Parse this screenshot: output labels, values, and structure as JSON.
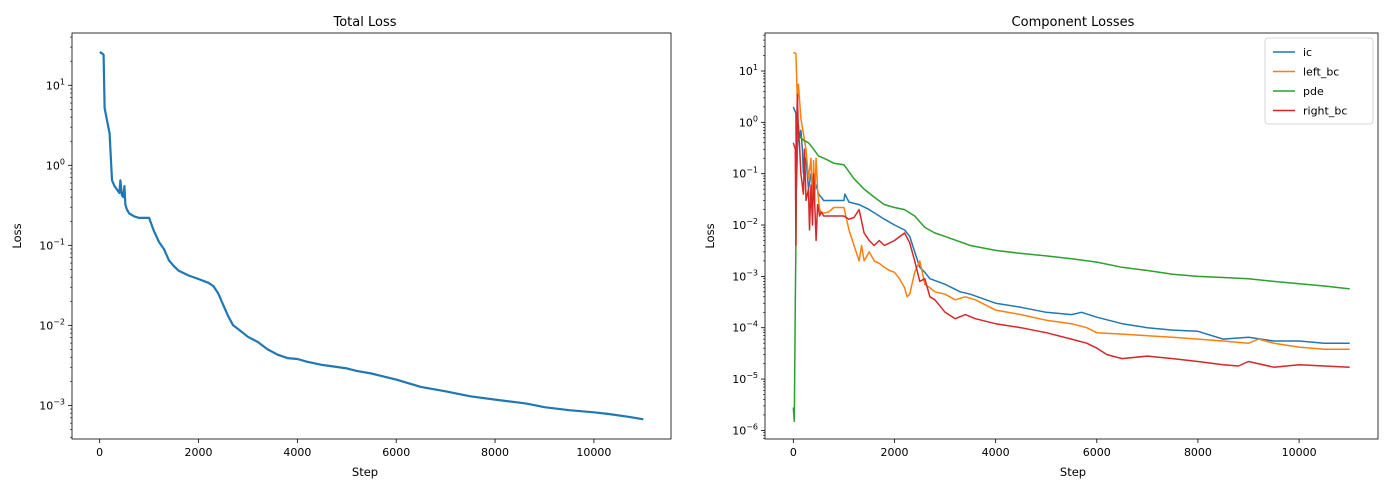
{
  "chart_data": [
    {
      "type": "line",
      "title": "Total Loss",
      "xlabel": "Step",
      "ylabel": "Loss",
      "yscale": "log",
      "xlim": [
        -560,
        11560
      ],
      "ylim": [
        0.00038,
        45
      ],
      "xticks": [
        0,
        2000,
        4000,
        6000,
        8000,
        10000
      ],
      "yticks": [
        {
          "value": 10,
          "exp": "1"
        },
        {
          "value": 1,
          "exp": "0"
        },
        {
          "value": 0.1,
          "exp": "−1"
        },
        {
          "value": 0.01,
          "exp": "−2"
        },
        {
          "value": 0.001,
          "exp": "−3"
        }
      ],
      "grid": false,
      "series": [
        {
          "color": "#1f77b4",
          "x": [
            0,
            50,
            80,
            100,
            200,
            250,
            300,
            400,
            420,
            450,
            480,
            500,
            520,
            550,
            600,
            700,
            800,
            1000,
            1100,
            1200,
            1300,
            1400,
            1500,
            1600,
            1800,
            2000,
            2200,
            2300,
            2400,
            2500,
            2600,
            2700,
            2800,
            3000,
            3200,
            3400,
            3600,
            3800,
            4000,
            4200,
            4500,
            5000,
            5200,
            5500,
            6000,
            6500,
            7000,
            7500,
            8000,
            8500,
            8650,
            9000,
            9500,
            10000,
            10300,
            10700,
            11000
          ],
          "y": [
            26,
            25,
            24,
            5.2,
            2.5,
            0.65,
            0.55,
            0.45,
            0.65,
            0.42,
            0.4,
            0.55,
            0.32,
            0.28,
            0.25,
            0.23,
            0.22,
            0.22,
            0.15,
            0.11,
            0.09,
            0.065,
            0.055,
            0.048,
            0.042,
            0.038,
            0.034,
            0.031,
            0.025,
            0.018,
            0.013,
            0.01,
            0.009,
            0.0072,
            0.0062,
            0.005,
            0.0043,
            0.0039,
            0.0038,
            0.0035,
            0.0032,
            0.0029,
            0.0027,
            0.0025,
            0.0021,
            0.0017,
            0.0015,
            0.0013,
            0.00118,
            0.00108,
            0.00105,
            0.00095,
            0.00087,
            0.00082,
            0.00078,
            0.00072,
            0.00067
          ]
        }
      ]
    },
    {
      "type": "line",
      "title": "Component Losses",
      "xlabel": "Step",
      "ylabel": "Loss",
      "yscale": "log",
      "xlim": [
        -560,
        11560
      ],
      "ylim": [
        6.8e-07,
        55
      ],
      "xticks": [
        0,
        2000,
        4000,
        6000,
        8000,
        10000
      ],
      "yticks": [
        {
          "value": 10,
          "exp": "1"
        },
        {
          "value": 1,
          "exp": "0"
        },
        {
          "value": 0.1,
          "exp": "−1"
        },
        {
          "value": 0.01,
          "exp": "−2"
        },
        {
          "value": 0.001,
          "exp": "−3"
        },
        {
          "value": 0.0001,
          "exp": "−4"
        },
        {
          "value": 1e-05,
          "exp": "−5"
        },
        {
          "value": 1e-06,
          "exp": "−6"
        }
      ],
      "grid": false,
      "legend": "upper-right",
      "series": [
        {
          "name": "ic",
          "color": "#1f77b4",
          "x": [
            0,
            50,
            60,
            80,
            100,
            120,
            150,
            180,
            200,
            250,
            300,
            350,
            400,
            450,
            500,
            550,
            600,
            800,
            1000,
            1020,
            1100,
            1300,
            1500,
            1800,
            2000,
            2200,
            2300,
            2400,
            2500,
            2600,
            2700,
            3000,
            3300,
            3500,
            4000,
            4500,
            5000,
            5500,
            5700,
            6000,
            6500,
            7000,
            7500,
            8000,
            8500,
            9000,
            9500,
            10000,
            10500,
            11000
          ],
          "y": [
            2.0,
            1.5,
            0.05,
            0.3,
            0.9,
            0.5,
            0.7,
            0.3,
            0.1,
            0.2,
            0.05,
            0.1,
            0.04,
            0.06,
            0.04,
            0.035,
            0.03,
            0.03,
            0.03,
            0.04,
            0.028,
            0.025,
            0.02,
            0.013,
            0.01,
            0.008,
            0.006,
            0.003,
            0.0015,
            0.0012,
            0.0009,
            0.0007,
            0.0005,
            0.00045,
            0.0003,
            0.00025,
            0.0002,
            0.00018,
            0.0002,
            0.00016,
            0.00012,
            0.0001,
            9e-05,
            8.5e-05,
            6e-05,
            6.5e-05,
            5.5e-05,
            5.5e-05,
            5e-05,
            5e-05
          ]
        },
        {
          "name": "left_bc",
          "color": "#ff7f0e",
          "x": [
            0,
            50,
            80,
            100,
            120,
            150,
            200,
            250,
            300,
            350,
            380,
            400,
            420,
            450,
            480,
            500,
            520,
            550,
            600,
            700,
            800,
            900,
            1000,
            1100,
            1200,
            1300,
            1350,
            1400,
            1500,
            1600,
            1700,
            1800,
            1900,
            2000,
            2100,
            2200,
            2250,
            2300,
            2400,
            2500,
            2600,
            2700,
            2800,
            3000,
            3200,
            3400,
            3600,
            4000,
            4500,
            5000,
            5500,
            5800,
            6000,
            6500,
            7000,
            7500,
            8000,
            8500,
            9000,
            9200,
            9500,
            10000,
            10500,
            11000
          ],
          "y": [
            23,
            22,
            2.5,
            5.5,
            3.0,
            1.2,
            0.6,
            0.3,
            0.08,
            0.2,
            0.02,
            0.18,
            0.03,
            0.2,
            0.05,
            0.03,
            0.02,
            0.018,
            0.017,
            0.018,
            0.022,
            0.022,
            0.022,
            0.008,
            0.004,
            0.002,
            0.004,
            0.002,
            0.003,
            0.002,
            0.0018,
            0.0015,
            0.0013,
            0.0012,
            0.0009,
            0.0006,
            0.0004,
            0.00045,
            0.0012,
            0.002,
            0.0007,
            0.0006,
            0.0005,
            0.00045,
            0.00035,
            0.0004,
            0.00035,
            0.00022,
            0.00018,
            0.00014,
            0.00012,
            0.0001,
            8e-05,
            7.5e-05,
            7e-05,
            6.5e-05,
            6e-05,
            5.5e-05,
            5e-05,
            6e-05,
            5e-05,
            4.2e-05,
            3.8e-05,
            3.8e-05
          ]
        },
        {
          "name": "pde",
          "color": "#2ca02c",
          "x": [
            0,
            20,
            40,
            50,
            60,
            80,
            100,
            150,
            200,
            300,
            400,
            500,
            600,
            700,
            800,
            1000,
            1200,
            1400,
            1600,
            1800,
            2000,
            2200,
            2400,
            2600,
            2800,
            3000,
            3500,
            4000,
            4500,
            5000,
            5500,
            6000,
            6500,
            7000,
            7500,
            8000,
            8500,
            9000,
            9500,
            10000,
            10500,
            11000
          ],
          "y": [
            2.8e-06,
            1.5e-06,
            0.0003,
            0.004,
            0.1,
            1.0,
            0.55,
            0.5,
            0.45,
            0.4,
            0.3,
            0.22,
            0.2,
            0.18,
            0.16,
            0.15,
            0.08,
            0.05,
            0.035,
            0.025,
            0.022,
            0.02,
            0.015,
            0.009,
            0.007,
            0.006,
            0.004,
            0.0032,
            0.0028,
            0.0025,
            0.0022,
            0.0019,
            0.0015,
            0.0013,
            0.0011,
            0.001,
            0.00095,
            0.0009,
            0.0008,
            0.00072,
            0.00065,
            0.00057
          ]
        },
        {
          "name": "right_bc",
          "color": "#d62728",
          "x": [
            0,
            40,
            50,
            60,
            80,
            100,
            120,
            150,
            200,
            220,
            250,
            300,
            320,
            350,
            380,
            400,
            420,
            450,
            480,
            500,
            520,
            550,
            600,
            700,
            800,
            1000,
            1100,
            1200,
            1300,
            1400,
            1500,
            1600,
            1700,
            1800,
            2000,
            2200,
            2300,
            2400,
            2500,
            2600,
            2700,
            2800,
            3000,
            3200,
            3400,
            3600,
            4000,
            4500,
            5000,
            5500,
            5800,
            6000,
            6200,
            6500,
            7000,
            7500,
            8000,
            8500,
            8800,
            9000,
            9500,
            10000,
            10500,
            11000
          ],
          "y": [
            0.4,
            0.3,
            0.004,
            0.5,
            3.5,
            0.6,
            0.4,
            0.1,
            0.04,
            0.3,
            0.03,
            0.05,
            0.008,
            0.06,
            0.01,
            0.1,
            0.03,
            0.005,
            0.025,
            0.02,
            0.015,
            0.018,
            0.015,
            0.015,
            0.015,
            0.015,
            0.013,
            0.014,
            0.02,
            0.007,
            0.005,
            0.004,
            0.005,
            0.004,
            0.005,
            0.007,
            0.0045,
            0.002,
            0.0008,
            0.0009,
            0.0004,
            0.00035,
            0.0002,
            0.00015,
            0.00018,
            0.00015,
            0.00012,
            0.0001,
            8e-05,
            6e-05,
            5e-05,
            4e-05,
            3e-05,
            2.5e-05,
            2.8e-05,
            2.5e-05,
            2.2e-05,
            1.9e-05,
            1.8e-05,
            2.2e-05,
            1.7e-05,
            1.9e-05,
            1.8e-05,
            1.7e-05
          ]
        }
      ]
    }
  ]
}
